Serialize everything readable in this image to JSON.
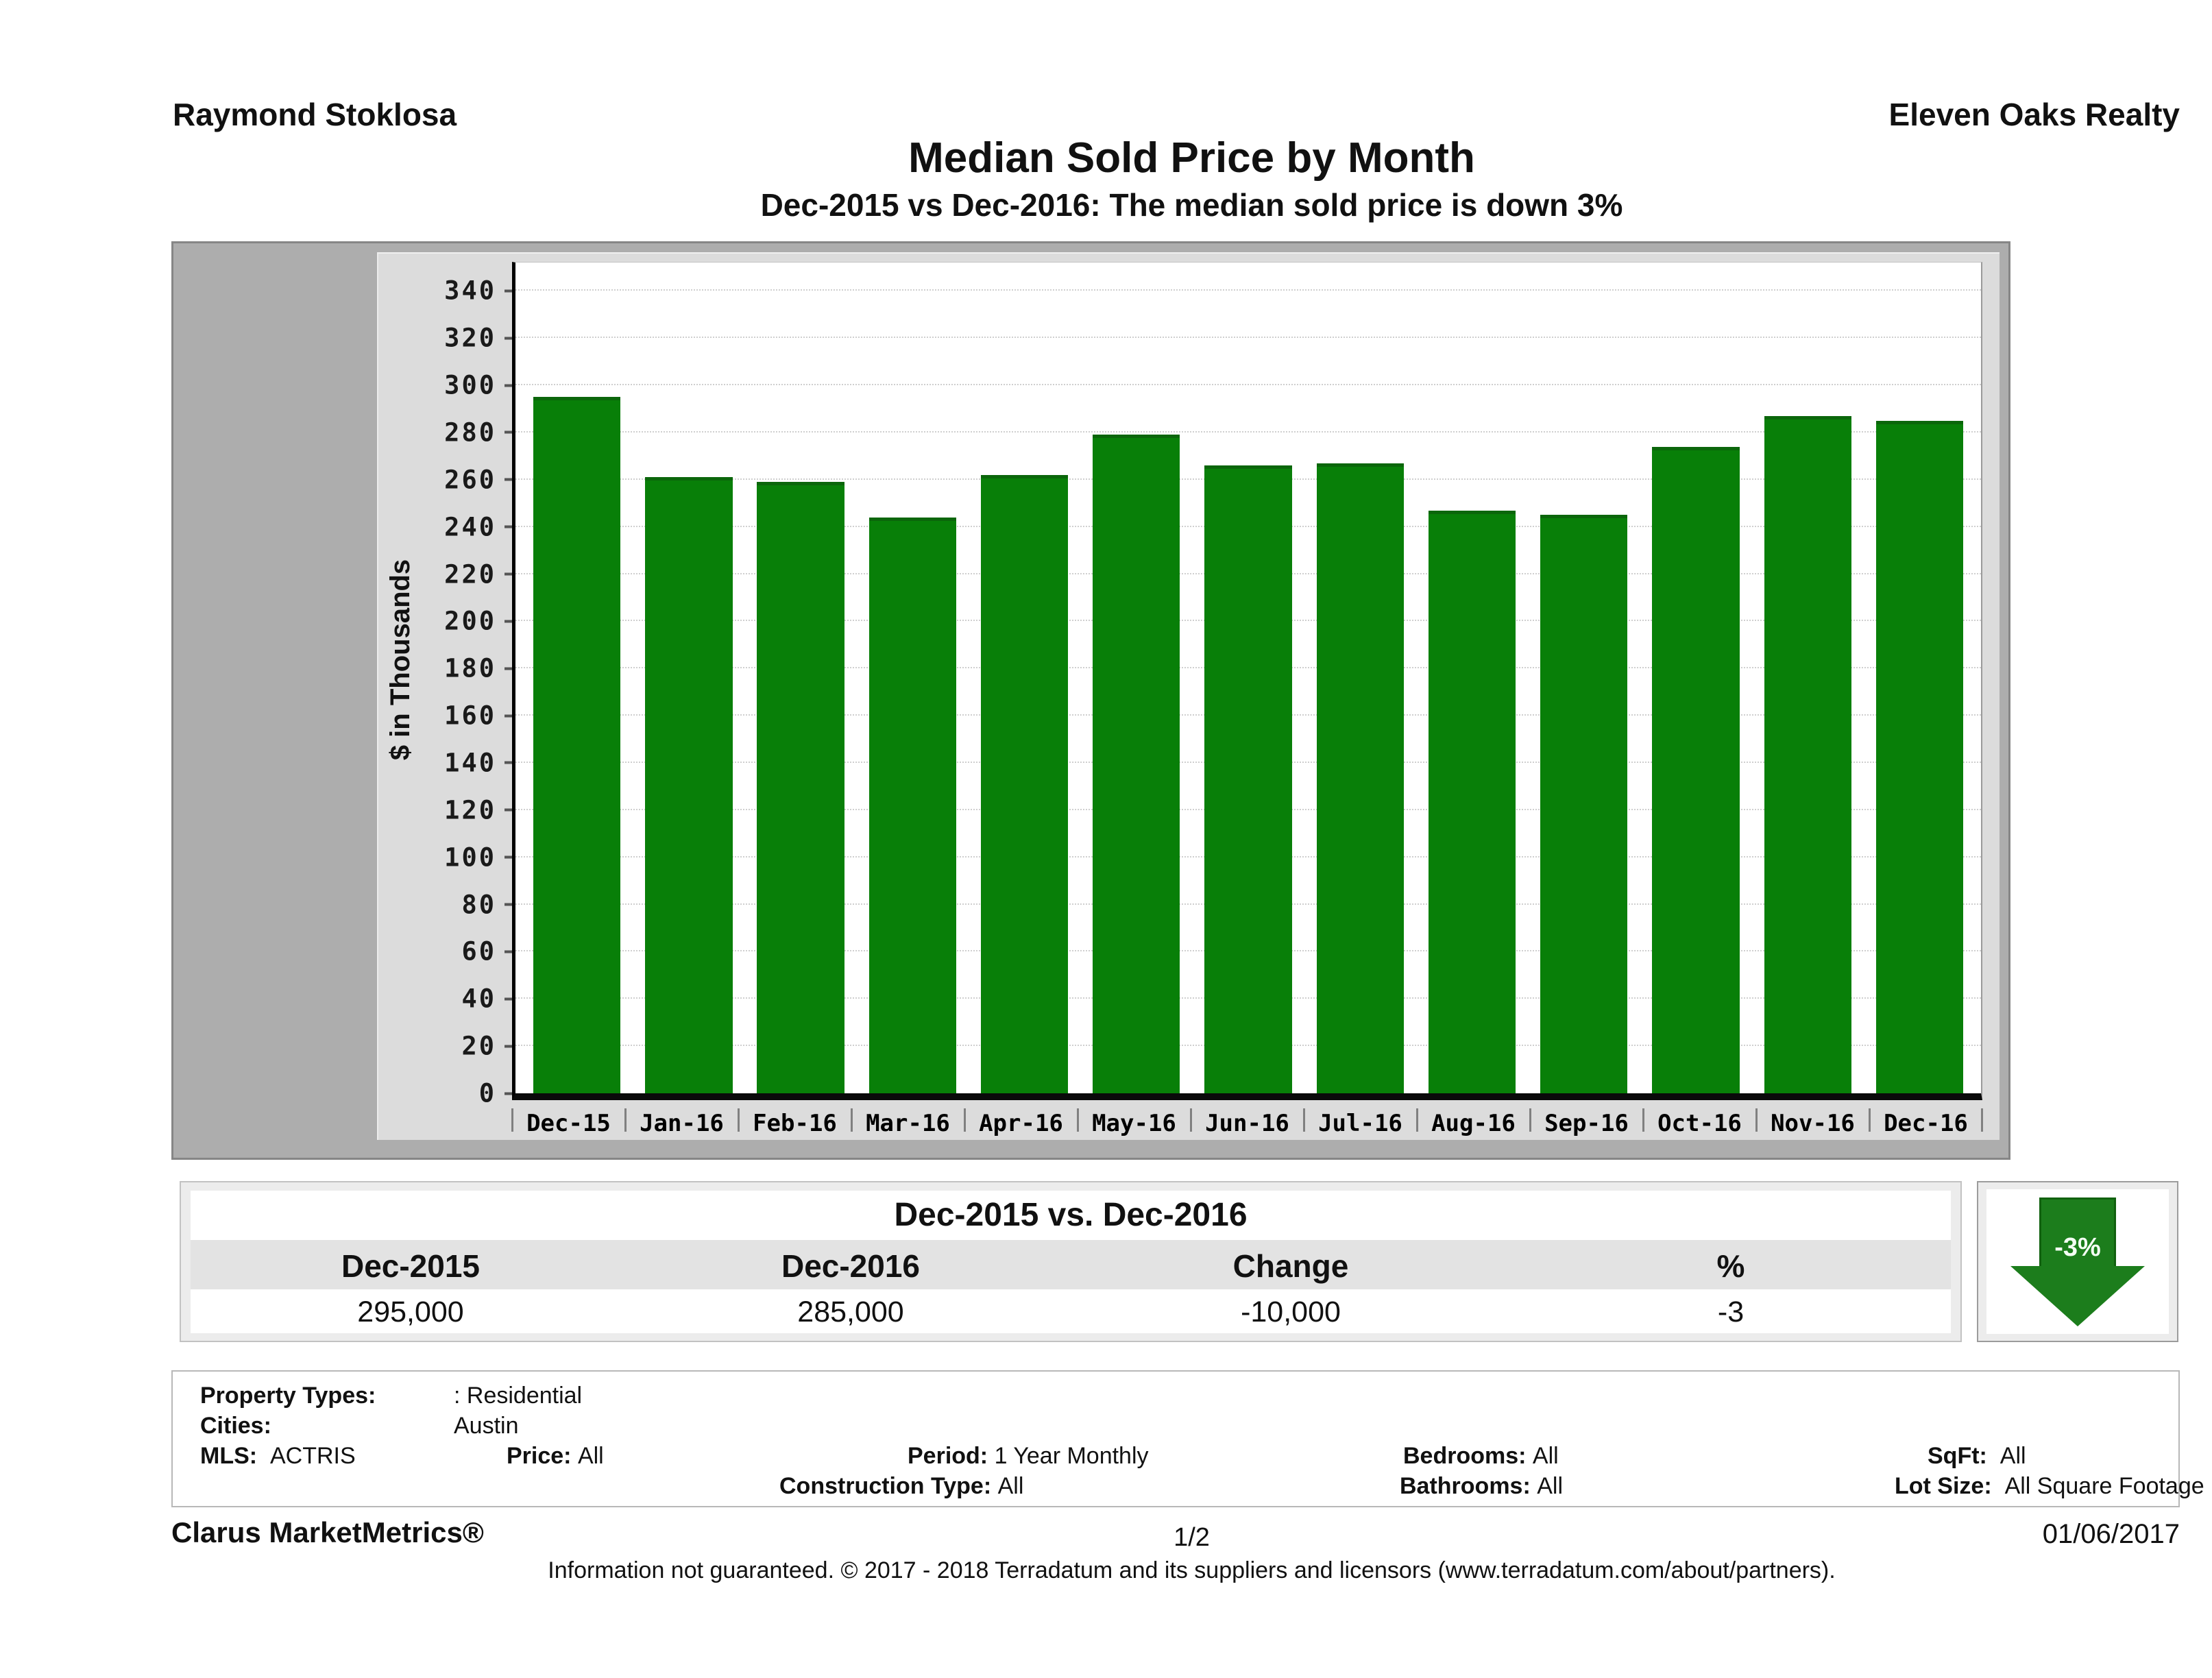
{
  "header": {
    "agent_name": "Raymond Stoklosa",
    "company_name": "Eleven Oaks Realty"
  },
  "title": "Median Sold Price by Month",
  "subtitle": "Dec-2015 vs Dec-2016: The median sold price is down 3%",
  "chart_data": {
    "type": "bar",
    "title": "Median Sold Price by Month",
    "categories": [
      "Dec-15",
      "Jan-16",
      "Feb-16",
      "Mar-16",
      "Apr-16",
      "May-16",
      "Jun-16",
      "Jul-16",
      "Aug-16",
      "Sep-16",
      "Oct-16",
      "Nov-16",
      "Dec-16"
    ],
    "values": [
      295,
      261,
      259,
      244,
      262,
      279,
      266,
      267,
      247,
      245,
      274,
      287,
      285
    ],
    "xlabel": "",
    "ylabel": "$ in Thousands",
    "ylim": [
      0,
      352
    ],
    "yticks": [
      0,
      20,
      40,
      60,
      80,
      100,
      120,
      140,
      160,
      180,
      200,
      220,
      240,
      260,
      280,
      300,
      320,
      340
    ],
    "grid": "horizontal-dotted",
    "legend_position": "none",
    "bar_color": "#087f08"
  },
  "comparison_table": {
    "title": "Dec-2015 vs. Dec-2016",
    "columns": [
      "Dec-2015",
      "Dec-2016",
      "Change",
      "%"
    ],
    "values": [
      "295,000",
      "285,000",
      "-10,000",
      "-3"
    ]
  },
  "change_badge": {
    "label": "-3%",
    "direction": "down",
    "color": "#1c7d1c"
  },
  "details": {
    "property_types_label": "Property Types:",
    "property_types_value": ": Residential",
    "cities_label": "Cities:",
    "cities_value": "Austin",
    "mls_label": "MLS:",
    "mls_value": "ACTRIS",
    "price_label": "Price:",
    "price_value": "All",
    "period_label": "Period:",
    "period_value": "1 Year Monthly",
    "construction_label": "Construction Type:",
    "construction_value": "All",
    "bedrooms_label": "Bedrooms:",
    "bedrooms_value": "All",
    "bathrooms_label": "Bathrooms:",
    "bathrooms_value": "All",
    "sqft_label": "SqFt:",
    "sqft_value": "All",
    "lot_label": "Lot Size:",
    "lot_value": "All Square Footage"
  },
  "footer": {
    "product": "Clarus MarketMetrics®",
    "page": "1/2",
    "date": "01/06/2017",
    "disclaimer": "Information not guaranteed. © 2017 - 2018 Terradatum and its suppliers and licensors (www.terradatum.com/about/partners)."
  }
}
